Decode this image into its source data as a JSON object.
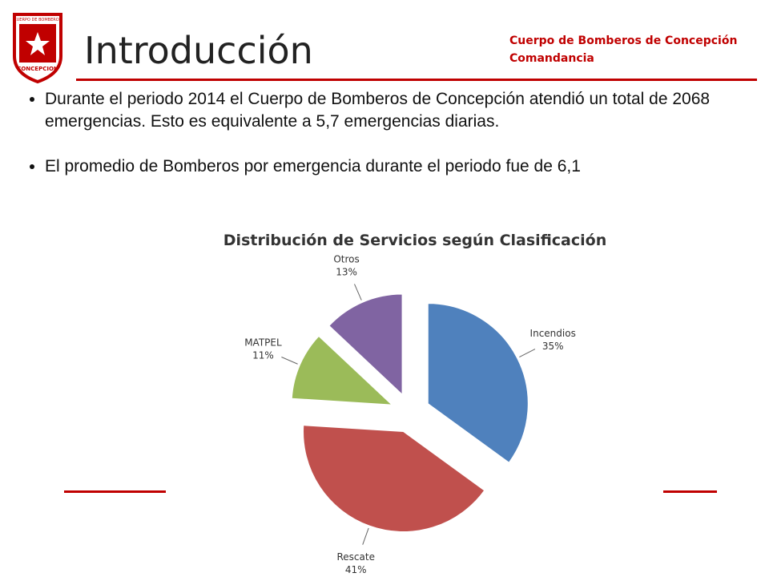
{
  "logo": {
    "top": "CUERPO DE BOMBEROS",
    "bottom": "CONCEPCION"
  },
  "header": {
    "title": "Introducción",
    "org": [
      "Cuerpo de Bomberos de Concepción",
      "Comandancia"
    ]
  },
  "bullets": [
    "Durante el periodo 2014 el Cuerpo de Bomberos de Concepción atendió un total de 2068 emergencias. Esto es equivalente a 5,7 emergencias diarias.",
    "El promedio de Bomberos por emergencia durante el periodo fue de 6,1"
  ],
  "chart_data": {
    "type": "pie",
    "title": "Distribución de Servicios según Clasificación",
    "categories": [
      "Incendios",
      "Rescate",
      "MATPEL",
      "Otros"
    ],
    "values": [
      35,
      41,
      11,
      13
    ],
    "value_labels": [
      "35%",
      "41%",
      "11%",
      "13%"
    ],
    "colors": [
      "#4f81bd",
      "#c0504d",
      "#9bbb59",
      "#8064a2"
    ]
  }
}
